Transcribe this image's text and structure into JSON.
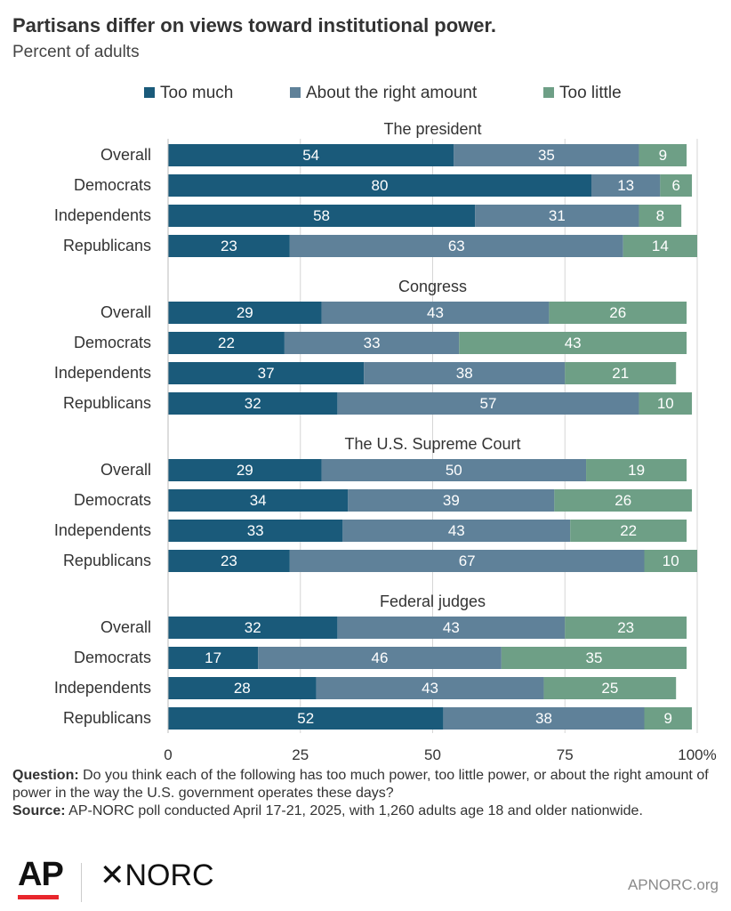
{
  "title": "Partisans differ on views toward institutional power.",
  "subtitle": "Percent of adults",
  "chart_data": {
    "type": "bar",
    "orientation": "horizontal",
    "stacked": true,
    "legend_position": "top",
    "xlim": [
      0,
      100
    ],
    "xticks": [
      "0",
      "25",
      "50",
      "75",
      "100%"
    ],
    "grid": true,
    "series": [
      {
        "name": "Too much",
        "color": "#1a5a7a"
      },
      {
        "name": "About the right amount",
        "color": "#5f8199"
      },
      {
        "name": "Too little",
        "color": "#6e9f86"
      }
    ],
    "groups": [
      {
        "label": "The president",
        "rows": [
          {
            "label": "Overall",
            "values": [
              54,
              35,
              9
            ]
          },
          {
            "label": "Democrats",
            "values": [
              80,
              13,
              6
            ]
          },
          {
            "label": "Independents",
            "values": [
              58,
              31,
              8
            ]
          },
          {
            "label": "Republicans",
            "values": [
              23,
              63,
              14
            ]
          }
        ]
      },
      {
        "label": "Congress",
        "rows": [
          {
            "label": "Overall",
            "values": [
              29,
              43,
              26
            ]
          },
          {
            "label": "Democrats",
            "values": [
              22,
              33,
              43
            ]
          },
          {
            "label": "Independents",
            "values": [
              37,
              38,
              21
            ]
          },
          {
            "label": "Republicans",
            "values": [
              32,
              57,
              10
            ]
          }
        ]
      },
      {
        "label": "The U.S. Supreme Court",
        "rows": [
          {
            "label": "Overall",
            "values": [
              29,
              50,
              19
            ]
          },
          {
            "label": "Democrats",
            "values": [
              34,
              39,
              26
            ]
          },
          {
            "label": "Independents",
            "values": [
              33,
              43,
              22
            ]
          },
          {
            "label": "Republicans",
            "values": [
              23,
              67,
              10
            ]
          }
        ]
      },
      {
        "label": "Federal judges",
        "rows": [
          {
            "label": "Overall",
            "values": [
              32,
              43,
              23
            ]
          },
          {
            "label": "Democrats",
            "values": [
              17,
              46,
              35
            ]
          },
          {
            "label": "Independents",
            "values": [
              28,
              43,
              25
            ]
          },
          {
            "label": "Republicans",
            "values": [
              52,
              38,
              9
            ]
          }
        ]
      }
    ]
  },
  "notes": {
    "question_label": "Question:",
    "question_text": "Do you think each of the following has too much power, too little power, or about the right amount of power in the way the U.S. government operates these days?",
    "source_label": "Source:",
    "source_text": "AP-NORC poll conducted April 17-21, 2025, with 1,260 adults age 18 and older nationwide."
  },
  "footer": {
    "logo_ap": "AP",
    "logo_norc": "✕NORC",
    "site": "APNORC.org"
  }
}
